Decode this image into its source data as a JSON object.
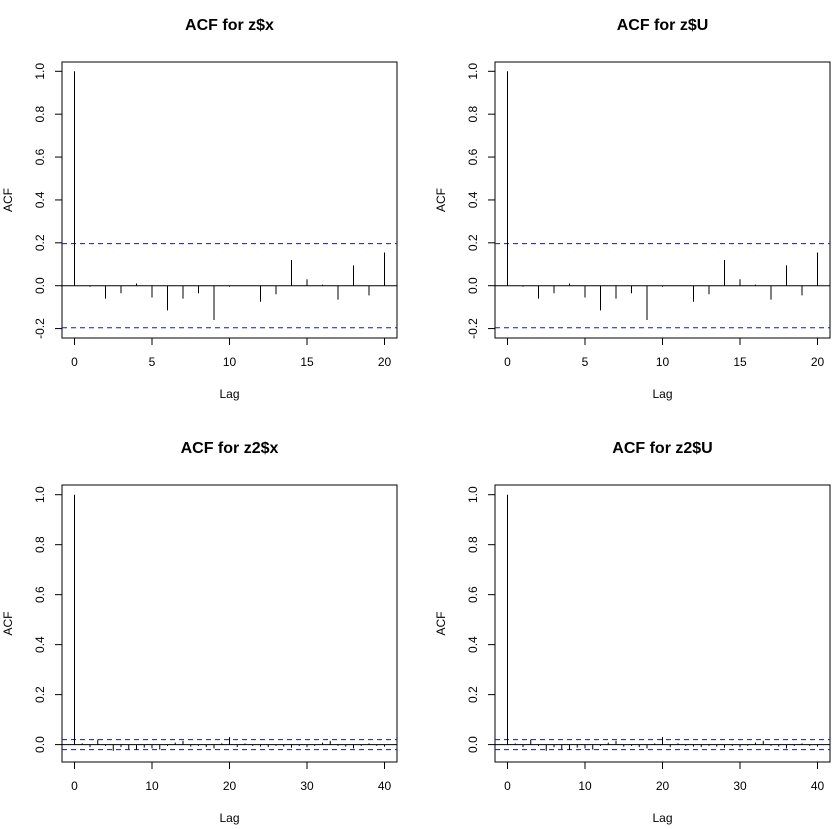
{
  "chart_data": [
    {
      "type": "bar",
      "title": "ACF for z$x",
      "xlabel": "Lag",
      "ylabel": "ACF",
      "xlim": [
        0,
        20
      ],
      "ylim": [
        -0.2,
        1.0
      ],
      "xticks": [
        "0",
        "5",
        "10",
        "15",
        "20"
      ],
      "yticks": [
        "-0.2",
        "0.0",
        "0.2",
        "0.4",
        "0.6",
        "0.8",
        "1.0"
      ],
      "conf_limit": 0.196,
      "lags": [
        0,
        1,
        2,
        3,
        4,
        5,
        6,
        7,
        8,
        9,
        10,
        11,
        12,
        13,
        14,
        15,
        16,
        17,
        18,
        19,
        20
      ],
      "values": [
        1.0,
        -0.005,
        -0.06,
        -0.035,
        0.01,
        -0.055,
        -0.115,
        -0.06,
        -0.035,
        -0.16,
        -0.005,
        0.0,
        -0.075,
        -0.04,
        0.12,
        0.03,
        0.005,
        -0.065,
        0.095,
        -0.045,
        0.155
      ],
      "grid": false
    },
    {
      "type": "bar",
      "title": "ACF for z$U",
      "xlabel": "Lag",
      "ylabel": "ACF",
      "xlim": [
        0,
        20
      ],
      "ylim": [
        -0.2,
        1.0
      ],
      "xticks": [
        "0",
        "5",
        "10",
        "15",
        "20"
      ],
      "yticks": [
        "-0.2",
        "0.0",
        "0.2",
        "0.4",
        "0.6",
        "0.8",
        "1.0"
      ],
      "conf_limit": 0.196,
      "lags": [
        0,
        1,
        2,
        3,
        4,
        5,
        6,
        7,
        8,
        9,
        10,
        11,
        12,
        13,
        14,
        15,
        16,
        17,
        18,
        19,
        20
      ],
      "values": [
        1.0,
        -0.005,
        -0.06,
        -0.035,
        0.01,
        -0.055,
        -0.115,
        -0.06,
        -0.035,
        -0.16,
        -0.005,
        0.0,
        -0.075,
        -0.04,
        0.12,
        0.03,
        0.005,
        -0.065,
        0.095,
        -0.045,
        0.155
      ],
      "grid": false
    },
    {
      "type": "bar",
      "title": "ACF for z2$x",
      "xlabel": "Lag",
      "ylabel": "ACF",
      "xlim": [
        0,
        40
      ],
      "ylim": [
        -0.05,
        1.0
      ],
      "xticks": [
        "0",
        "10",
        "20",
        "30",
        "40"
      ],
      "yticks": [
        "0.0",
        "0.2",
        "0.4",
        "0.6",
        "0.8",
        "1.0"
      ],
      "conf_limit": 0.02,
      "lags": [
        0,
        1,
        2,
        3,
        4,
        5,
        6,
        7,
        8,
        9,
        10,
        11,
        12,
        13,
        14,
        15,
        16,
        17,
        18,
        19,
        20,
        21,
        22,
        23,
        24,
        25,
        26,
        27,
        28,
        29,
        30,
        31,
        32,
        33,
        34,
        35,
        36,
        37,
        38,
        39,
        40
      ],
      "values": [
        1.0,
        0.005,
        -0.01,
        0.02,
        -0.005,
        -0.025,
        -0.01,
        -0.018,
        -0.02,
        -0.012,
        -0.015,
        -0.02,
        -0.005,
        0.008,
        0.015,
        -0.008,
        -0.005,
        -0.01,
        -0.015,
        0.005,
        0.03,
        -0.01,
        0.005,
        -0.005,
        -0.008,
        -0.01,
        -0.005,
        -0.008,
        -0.012,
        -0.005,
        -0.01,
        -0.005,
        0.008,
        0.015,
        -0.005,
        -0.008,
        -0.015,
        -0.005,
        0.005,
        -0.005,
        -0.008
      ],
      "grid": false
    },
    {
      "type": "bar",
      "title": "ACF for z2$U",
      "xlabel": "Lag",
      "ylabel": "ACF",
      "xlim": [
        0,
        40
      ],
      "ylim": [
        -0.05,
        1.0
      ],
      "xticks": [
        "0",
        "10",
        "20",
        "30",
        "40"
      ],
      "yticks": [
        "0.0",
        "0.2",
        "0.4",
        "0.6",
        "0.8",
        "1.0"
      ],
      "conf_limit": 0.02,
      "lags": [
        0,
        1,
        2,
        3,
        4,
        5,
        6,
        7,
        8,
        9,
        10,
        11,
        12,
        13,
        14,
        15,
        16,
        17,
        18,
        19,
        20,
        21,
        22,
        23,
        24,
        25,
        26,
        27,
        28,
        29,
        30,
        31,
        32,
        33,
        34,
        35,
        36,
        37,
        38,
        39,
        40
      ],
      "values": [
        1.0,
        0.005,
        -0.01,
        0.02,
        -0.005,
        -0.025,
        -0.01,
        -0.018,
        -0.02,
        -0.012,
        -0.015,
        -0.02,
        -0.005,
        0.008,
        0.015,
        -0.008,
        -0.005,
        -0.01,
        -0.015,
        0.005,
        0.03,
        -0.01,
        0.005,
        -0.005,
        -0.008,
        -0.01,
        -0.005,
        -0.008,
        -0.012,
        -0.005,
        -0.01,
        -0.005,
        0.008,
        0.015,
        -0.005,
        -0.008,
        -0.015,
        -0.005,
        0.005,
        -0.005,
        -0.008
      ],
      "grid": false
    }
  ],
  "colors": {
    "bar": "#000000",
    "axis": "#000000",
    "zero_line": "#000000",
    "conf_line": "#1a1aa0",
    "background": "#ffffff"
  }
}
